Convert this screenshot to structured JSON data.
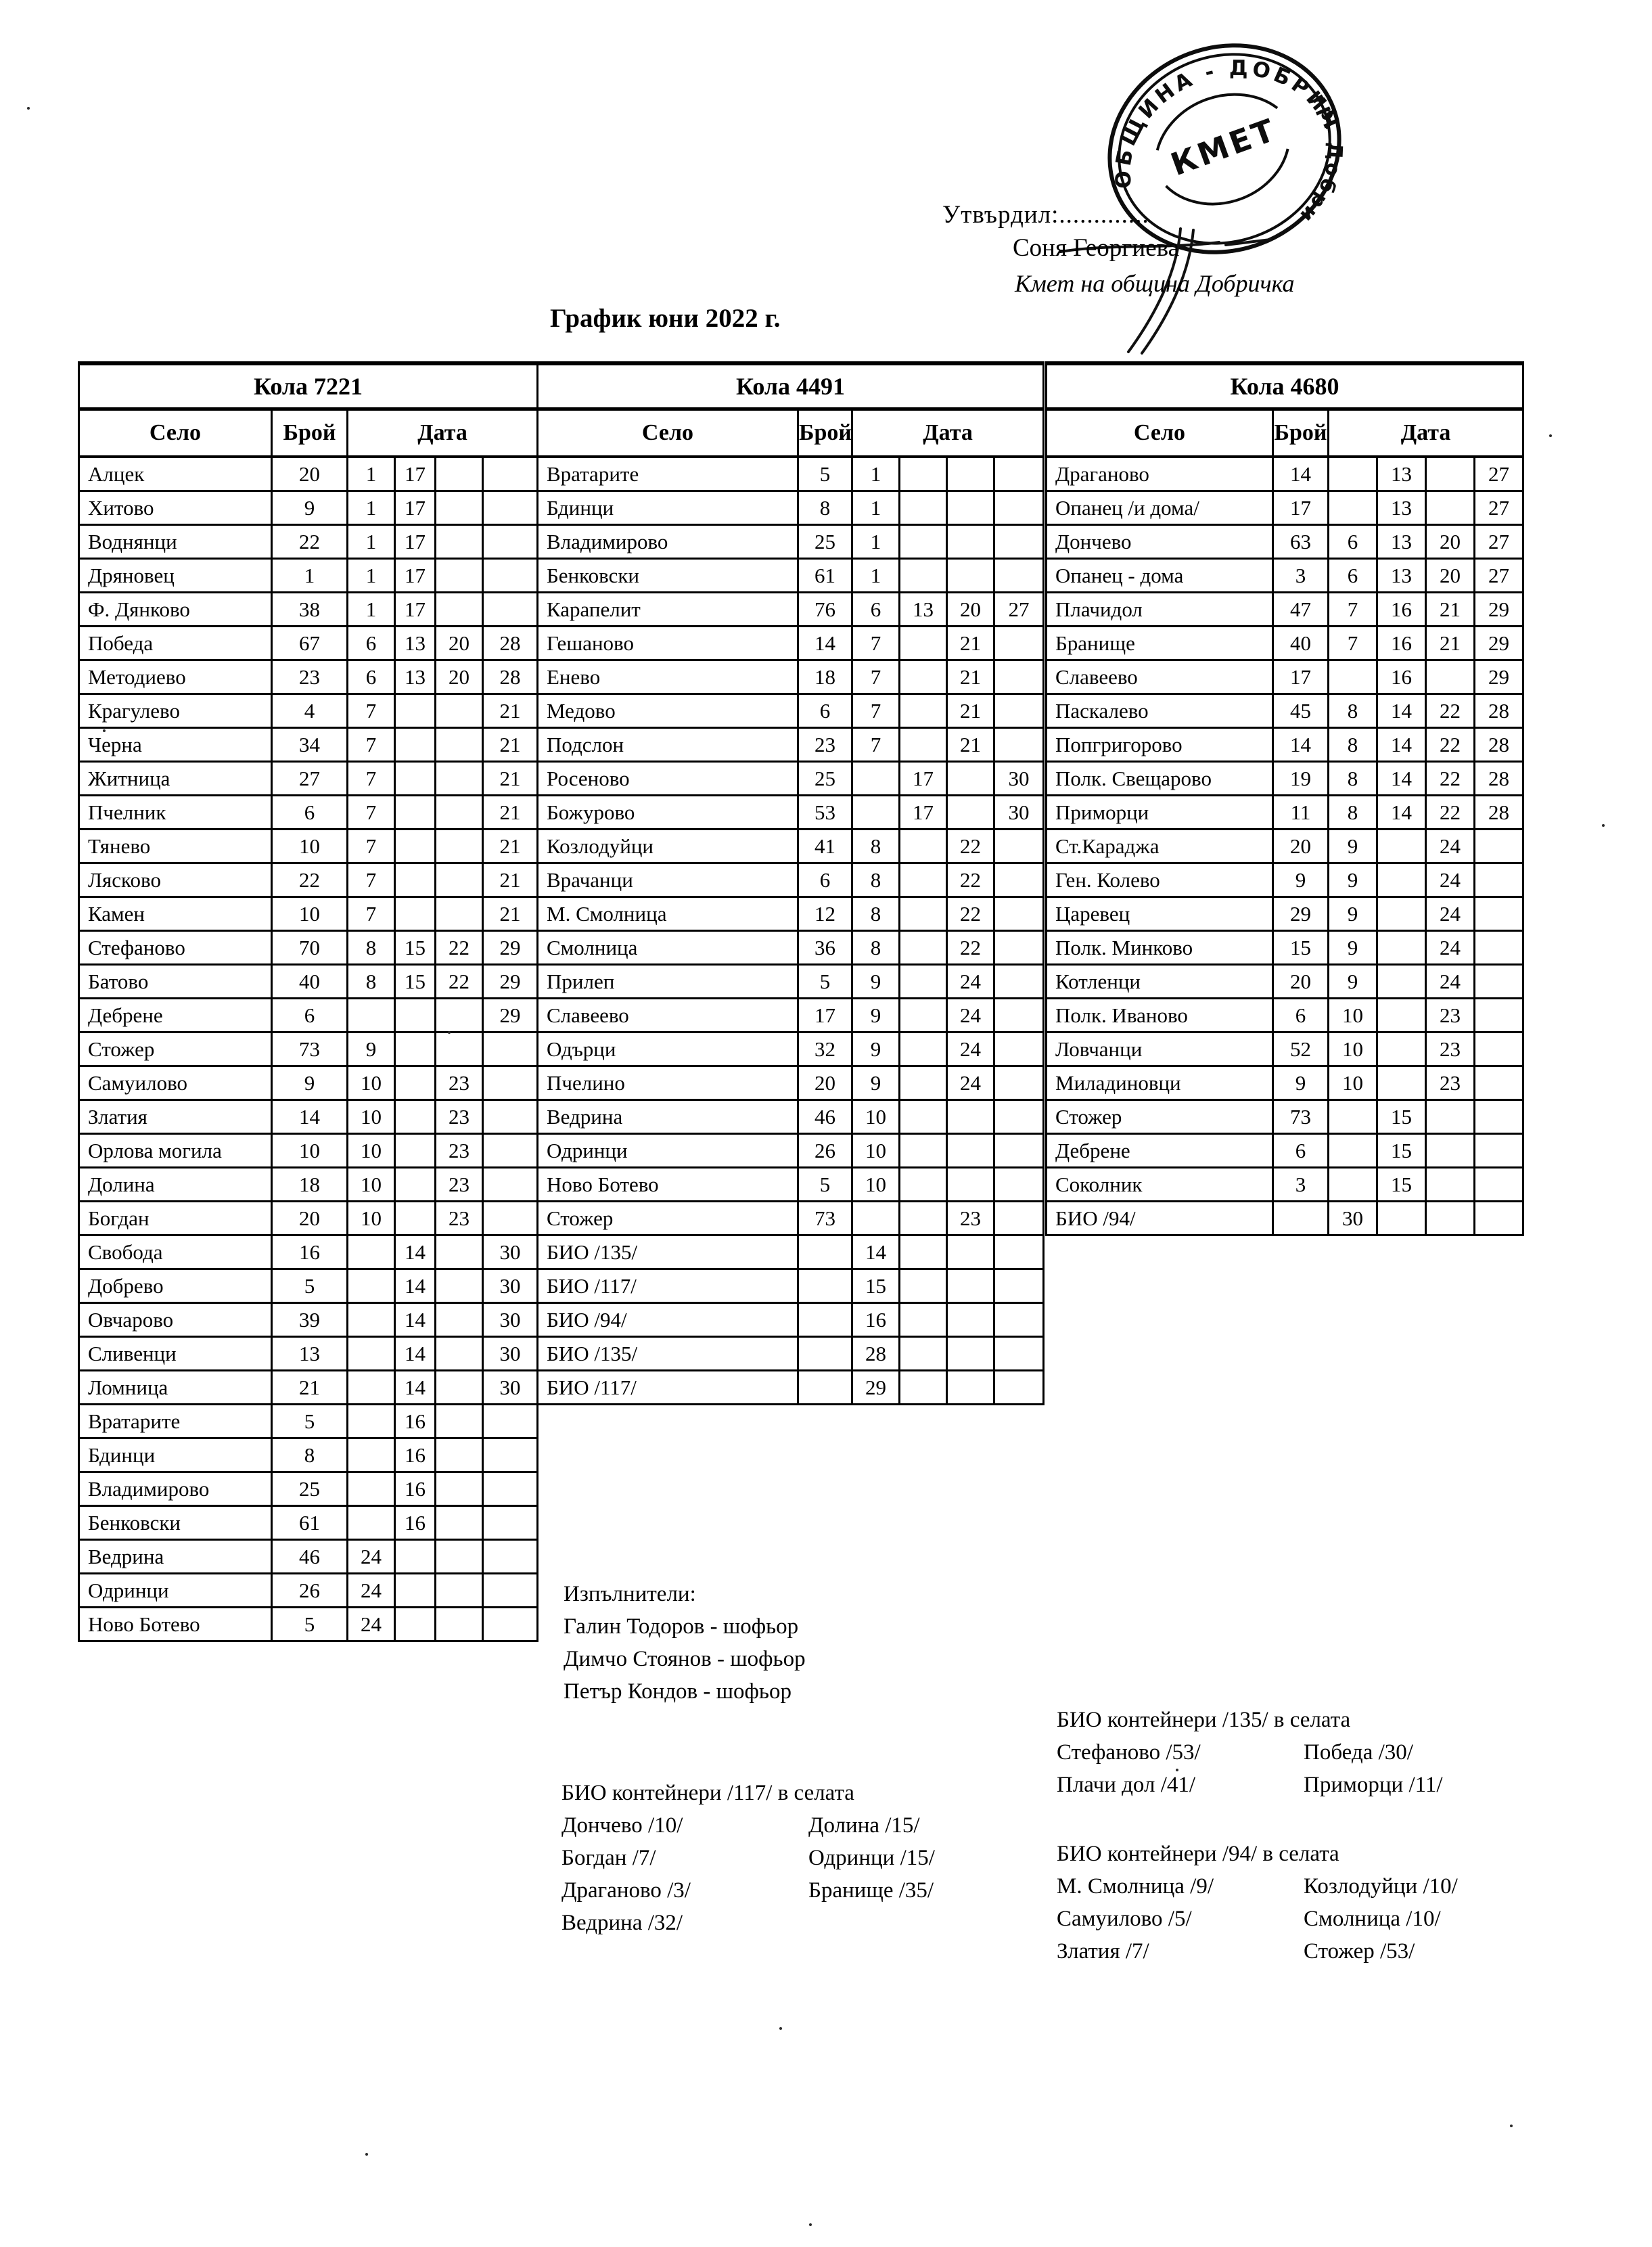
{
  "header": {
    "approve_label": "Утвърдил:.............",
    "approver_name": "Соня Георгиева",
    "approver_title": "Кмет  на община Добричка",
    "doc_title": "График юни 2022 г.",
    "stamp": {
      "ring_text": "ОБЩИНА - ДОБРИЧ",
      "city_text": "гр. Добрич",
      "center_text": "КМЕТ"
    }
  },
  "tables": [
    {
      "car": "Кола 7221",
      "headers": {
        "village": "Село",
        "count": "Брой",
        "date": "Дата"
      },
      "rows": [
        {
          "name": "Алцек",
          "count": "20",
          "dates": [
            "1",
            "17",
            "",
            ""
          ]
        },
        {
          "name": "Хитово",
          "count": "9",
          "dates": [
            "1",
            "17",
            "",
            ""
          ]
        },
        {
          "name": "Воднянци",
          "count": "22",
          "dates": [
            "1",
            "17",
            "",
            ""
          ]
        },
        {
          "name": "Дряновец",
          "count": "1",
          "dates": [
            "1",
            "17",
            "",
            ""
          ]
        },
        {
          "name": "Ф. Дянково",
          "count": "38",
          "dates": [
            "1",
            "17",
            "",
            ""
          ]
        },
        {
          "name": "Победа",
          "count": "67",
          "dates": [
            "6",
            "13",
            "20",
            "28"
          ]
        },
        {
          "name": "Методиево",
          "count": "23",
          "dates": [
            "6",
            "13",
            "20",
            "28"
          ]
        },
        {
          "name": "Крагулево",
          "count": "4",
          "dates": [
            "7",
            "",
            "",
            "21"
          ]
        },
        {
          "name": "Черна",
          "count": "34",
          "dates": [
            "7",
            "",
            "",
            "21"
          ]
        },
        {
          "name": "Житница",
          "count": "27",
          "dates": [
            "7",
            "",
            "",
            "21"
          ]
        },
        {
          "name": "Пчелник",
          "count": "6",
          "dates": [
            "7",
            "",
            "",
            "21"
          ]
        },
        {
          "name": "Тянево",
          "count": "10",
          "dates": [
            "7",
            "",
            "",
            "21"
          ]
        },
        {
          "name": "Лясково",
          "count": "22",
          "dates": [
            "7",
            "",
            "",
            "21"
          ]
        },
        {
          "name": "Камен",
          "count": "10",
          "dates": [
            "7",
            "",
            "",
            "21"
          ]
        },
        {
          "name": "Стефаново",
          "count": "70",
          "dates": [
            "8",
            "15",
            "22",
            "29"
          ]
        },
        {
          "name": "Батово",
          "count": "40",
          "dates": [
            "8",
            "15",
            "22",
            "29"
          ]
        },
        {
          "name": "Дебрене",
          "count": "6",
          "dates": [
            "",
            "",
            "",
            "29"
          ]
        },
        {
          "name": "Стожер",
          "count": "73",
          "dates": [
            "9",
            "",
            "",
            ""
          ]
        },
        {
          "name": "Самуилово",
          "count": "9",
          "dates": [
            "10",
            "",
            "23",
            ""
          ]
        },
        {
          "name": "Златия",
          "count": "14",
          "dates": [
            "10",
            "",
            "23",
            ""
          ]
        },
        {
          "name": "Орлова могила",
          "count": "10",
          "dates": [
            "10",
            "",
            "23",
            ""
          ]
        },
        {
          "name": "Долина",
          "count": "18",
          "dates": [
            "10",
            "",
            "23",
            ""
          ]
        },
        {
          "name": "Богдан",
          "count": "20",
          "dates": [
            "10",
            "",
            "23",
            ""
          ]
        },
        {
          "name": "Свобода",
          "count": "16",
          "dates": [
            "",
            "14",
            "",
            "30"
          ]
        },
        {
          "name": "Добрево",
          "count": "5",
          "dates": [
            "",
            "14",
            "",
            "30"
          ]
        },
        {
          "name": "Овчарово",
          "count": "39",
          "dates": [
            "",
            "14",
            "",
            "30"
          ]
        },
        {
          "name": "Сливенци",
          "count": "13",
          "dates": [
            "",
            "14",
            "",
            "30"
          ]
        },
        {
          "name": "Ломница",
          "count": "21",
          "dates": [
            "",
            "14",
            "",
            "30"
          ]
        },
        {
          "name": "Вратарите",
          "count": "5",
          "dates": [
            "",
            "16",
            "",
            ""
          ]
        },
        {
          "name": "Бдинци",
          "count": "8",
          "dates": [
            "",
            "16",
            "",
            ""
          ]
        },
        {
          "name": "Владимирово",
          "count": "25",
          "dates": [
            "",
            "16",
            "",
            ""
          ]
        },
        {
          "name": "Бенковски",
          "count": "61",
          "dates": [
            "",
            "16",
            "",
            ""
          ]
        },
        {
          "name": "Ведрина",
          "count": "46",
          "dates": [
            "24",
            "",
            "",
            ""
          ]
        },
        {
          "name": "Одринци",
          "count": "26",
          "dates": [
            "24",
            "",
            "",
            ""
          ]
        },
        {
          "name": "Ново Ботево",
          "count": "5",
          "dates": [
            "24",
            "",
            "",
            ""
          ]
        }
      ]
    },
    {
      "car": "Кола 4491",
      "headers": {
        "village": "Село",
        "count": "Брой",
        "date": "Дата"
      },
      "rows": [
        {
          "name": "Вратарите",
          "count": "5",
          "dates": [
            "1",
            "",
            "",
            ""
          ]
        },
        {
          "name": "Бдинци",
          "count": "8",
          "dates": [
            "1",
            "",
            "",
            ""
          ]
        },
        {
          "name": "Владимирово",
          "count": "25",
          "dates": [
            "1",
            "",
            "",
            ""
          ]
        },
        {
          "name": "Бенковски",
          "count": "61",
          "dates": [
            "1",
            "",
            "",
            ""
          ]
        },
        {
          "name": "Карапелит",
          "count": "76",
          "dates": [
            "6",
            "13",
            "20",
            "27"
          ]
        },
        {
          "name": "Гешаново",
          "count": "14",
          "dates": [
            "7",
            "",
            "21",
            ""
          ]
        },
        {
          "name": "Енево",
          "count": "18",
          "dates": [
            "7",
            "",
            "21",
            ""
          ]
        },
        {
          "name": "Медово",
          "count": "6",
          "dates": [
            "7",
            "",
            "21",
            ""
          ]
        },
        {
          "name": "Подслон",
          "count": "23",
          "dates": [
            "7",
            "",
            "21",
            ""
          ]
        },
        {
          "name": "Росеново",
          "count": "25",
          "dates": [
            "",
            "17",
            "",
            "30"
          ]
        },
        {
          "name": "Божурово",
          "count": "53",
          "dates": [
            "",
            "17",
            "",
            "30"
          ]
        },
        {
          "name": "Козлодуйци",
          "count": "41",
          "dates": [
            "8",
            "",
            "22",
            ""
          ]
        },
        {
          "name": "Врачанци",
          "count": "6",
          "dates": [
            "8",
            "",
            "22",
            ""
          ]
        },
        {
          "name": "М. Смолница",
          "count": "12",
          "dates": [
            "8",
            "",
            "22",
            ""
          ]
        },
        {
          "name": "Смолница",
          "count": "36",
          "dates": [
            "8",
            "",
            "22",
            ""
          ]
        },
        {
          "name": "Прилеп",
          "count": "5",
          "dates": [
            "9",
            "",
            "24",
            ""
          ]
        },
        {
          "name": "Славеево",
          "count": "17",
          "dates": [
            "9",
            "",
            "24",
            ""
          ]
        },
        {
          "name": "Одърци",
          "count": "32",
          "dates": [
            "9",
            "",
            "24",
            ""
          ]
        },
        {
          "name": "Пчелино",
          "count": "20",
          "dates": [
            "9",
            "",
            "24",
            ""
          ]
        },
        {
          "name": "Ведрина",
          "count": "46",
          "dates": [
            "10",
            "",
            "",
            ""
          ]
        },
        {
          "name": "Одринци",
          "count": "26",
          "dates": [
            "10",
            "",
            "",
            ""
          ]
        },
        {
          "name": "Ново Ботево",
          "count": "5",
          "dates": [
            "10",
            "",
            "",
            ""
          ]
        },
        {
          "name": "Стожер",
          "count": "73",
          "dates": [
            "",
            "",
            "23",
            ""
          ]
        },
        {
          "name": "БИО /135/",
          "count": "",
          "dates": [
            "14",
            "",
            "",
            ""
          ]
        },
        {
          "name": "БИО /117/",
          "count": "",
          "dates": [
            "15",
            "",
            "",
            ""
          ]
        },
        {
          "name": "БИО /94/",
          "count": "",
          "dates": [
            "16",
            "",
            "",
            ""
          ]
        },
        {
          "name": "БИО /135/",
          "count": "",
          "dates": [
            "28",
            "",
            "",
            ""
          ]
        },
        {
          "name": "БИО /117/",
          "count": "",
          "dates": [
            "29",
            "",
            "",
            ""
          ]
        }
      ]
    },
    {
      "car": "Кола 4680",
      "headers": {
        "village": "Село",
        "count": "Брой",
        "date": "Дата"
      },
      "rows": [
        {
          "name": "Драганово",
          "count": "14",
          "dates": [
            "",
            "13",
            "",
            "27"
          ]
        },
        {
          "name": "Опанец /и дома/",
          "count": "17",
          "dates": [
            "",
            "13",
            "",
            "27"
          ]
        },
        {
          "name": "Дончево",
          "count": "63",
          "dates": [
            "6",
            "13",
            "20",
            "27"
          ]
        },
        {
          "name": "Опанец - дома",
          "count": "3",
          "dates": [
            "6",
            "13",
            "20",
            "27"
          ]
        },
        {
          "name": "Плачидол",
          "count": "47",
          "dates": [
            "7",
            "16",
            "21",
            "29"
          ]
        },
        {
          "name": "Бранище",
          "count": "40",
          "dates": [
            "7",
            "16",
            "21",
            "29"
          ]
        },
        {
          "name": "Славеево",
          "count": "17",
          "dates": [
            "",
            "16",
            "",
            "29"
          ]
        },
        {
          "name": "Паскалево",
          "count": "45",
          "dates": [
            "8",
            "14",
            "22",
            "28"
          ]
        },
        {
          "name": "Попгригорово",
          "count": "14",
          "dates": [
            "8",
            "14",
            "22",
            "28"
          ]
        },
        {
          "name": "Полк. Свещарово",
          "count": "19",
          "dates": [
            "8",
            "14",
            "22",
            "28"
          ]
        },
        {
          "name": "Приморци",
          "count": "11",
          "dates": [
            "8",
            "14",
            "22",
            "28"
          ]
        },
        {
          "name": "Ст.Караджа",
          "count": "20",
          "dates": [
            "9",
            "",
            "24",
            ""
          ]
        },
        {
          "name": "Ген. Колево",
          "count": "9",
          "dates": [
            "9",
            "",
            "24",
            ""
          ]
        },
        {
          "name": "Царевец",
          "count": "29",
          "dates": [
            "9",
            "",
            "24",
            ""
          ]
        },
        {
          "name": "Полк. Минково",
          "count": "15",
          "dates": [
            "9",
            "",
            "24",
            ""
          ]
        },
        {
          "name": "Котленци",
          "count": "20",
          "dates": [
            "9",
            "",
            "24",
            ""
          ]
        },
        {
          "name": "Полк. Иваново",
          "count": "6",
          "dates": [
            "10",
            "",
            "23",
            ""
          ]
        },
        {
          "name": "Ловчанци",
          "count": "52",
          "dates": [
            "10",
            "",
            "23",
            ""
          ]
        },
        {
          "name": "Миладиновци",
          "count": "9",
          "dates": [
            "10",
            "",
            "23",
            ""
          ]
        },
        {
          "name": "Стожер",
          "count": "73",
          "dates": [
            "",
            "15",
            "",
            ""
          ]
        },
        {
          "name": "Дебрене",
          "count": "6",
          "dates": [
            "",
            "15",
            "",
            ""
          ]
        },
        {
          "name": "Соколник",
          "count": "3",
          "dates": [
            "",
            "15",
            "",
            ""
          ]
        },
        {
          "name": "БИО /94/",
          "count": "",
          "dates": [
            "30",
            "",
            "",
            ""
          ]
        }
      ]
    }
  ],
  "executors": {
    "title": "Изпълнители:",
    "lines": [
      "Галин Тодоров - шофьор",
      "Димчо Стоянов - шофьор",
      "Петър Кондов - шофьор"
    ]
  },
  "bio_sections": [
    {
      "title": "БИО контейнери /135/ в селата",
      "left": [
        "Стефаново /53/",
        "Плачи дол /41/"
      ],
      "right": [
        "Победа /30/",
        "Приморци /11/"
      ]
    },
    {
      "title": "БИО контейнери /117/ в селата",
      "left": [
        "Дончево /10/",
        "Богдан /7/",
        "Драганово /3/",
        "Ведрина /32/"
      ],
      "right": [
        "Долина /15/",
        "Одринци /15/",
        "Бранище /35/"
      ]
    },
    {
      "title": "БИО контейнери /94/ в селата",
      "left": [
        "М. Смолница /9/",
        "Самуилово /5/",
        "Златия /7/"
      ],
      "right": [
        "Козлодуйци /10/",
        "Смолница /10/",
        "Стожер /53/"
      ]
    }
  ]
}
